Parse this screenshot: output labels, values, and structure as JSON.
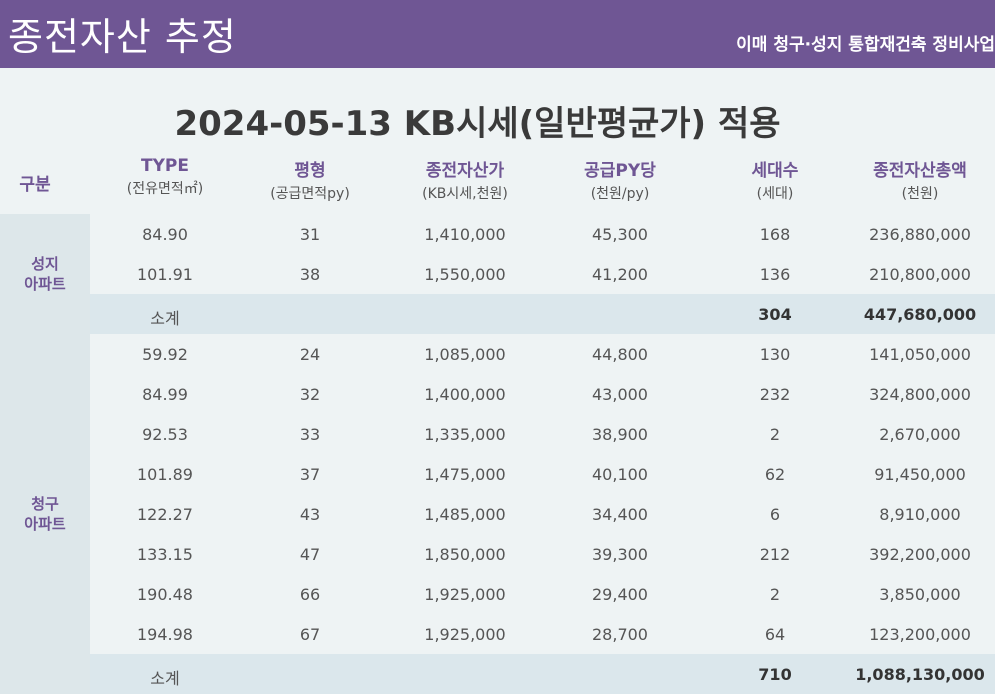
{
  "header": {
    "title": "종전자산 추정",
    "subtitle": "이매 청구·성지 통합재건축 정비사업"
  },
  "main_title": "2024-05-13 KB시세(일반평균가) 적용",
  "columns": [
    {
      "main": "구분",
      "sub": ""
    },
    {
      "main": "TYPE",
      "sub": "(전유면적㎡)"
    },
    {
      "main": "평형",
      "sub": "(공급면적py)"
    },
    {
      "main": "종전자산가",
      "sub": "(KB시세,천원)"
    },
    {
      "main": "공급PY당",
      "sub": "(천원/py)"
    },
    {
      "main": "세대수",
      "sub": "(세대)"
    },
    {
      "main": "종전자산총액",
      "sub": "(천원)"
    }
  ],
  "groups": [
    {
      "label_line1": "성지",
      "label_line2": "아파트",
      "rows": [
        {
          "type": "84.90",
          "py": "31",
          "price": "1,410,000",
          "per_py": "45,300",
          "units": "168",
          "total": "236,880,000"
        },
        {
          "type": "101.91",
          "py": "38",
          "price": "1,550,000",
          "per_py": "41,200",
          "units": "136",
          "total": "210,800,000"
        }
      ],
      "subtotal": {
        "label": "소계",
        "units": "304",
        "total": "447,680,000"
      }
    },
    {
      "label_line1": "청구",
      "label_line2": "아파트",
      "rows": [
        {
          "type": "59.92",
          "py": "24",
          "price": "1,085,000",
          "per_py": "44,800",
          "units": "130",
          "total": "141,050,000"
        },
        {
          "type": "84.99",
          "py": "32",
          "price": "1,400,000",
          "per_py": "43,000",
          "units": "232",
          "total": "324,800,000"
        },
        {
          "type": "92.53",
          "py": "33",
          "price": "1,335,000",
          "per_py": "38,900",
          "units": "2",
          "total": "2,670,000"
        },
        {
          "type": "101.89",
          "py": "37",
          "price": "1,475,000",
          "per_py": "40,100",
          "units": "62",
          "total": "91,450,000"
        },
        {
          "type": "122.27",
          "py": "43",
          "price": "1,485,000",
          "per_py": "34,400",
          "units": "6",
          "total": "8,910,000"
        },
        {
          "type": "133.15",
          "py": "47",
          "price": "1,850,000",
          "per_py": "39,300",
          "units": "212",
          "total": "392,200,000"
        },
        {
          "type": "190.48",
          "py": "66",
          "price": "1,925,000",
          "per_py": "29,400",
          "units": "2",
          "total": "3,850,000"
        },
        {
          "type": "194.98",
          "py": "67",
          "price": "1,925,000",
          "per_py": "28,700",
          "units": "64",
          "total": "123,200,000"
        }
      ],
      "subtotal": {
        "label": "소계",
        "units": "710",
        "total": "1,088,130,000"
      }
    }
  ],
  "colors": {
    "header_bg": "#6f5694",
    "accent": "#6f5694",
    "subtotal_bg": "#dbe7ec"
  }
}
